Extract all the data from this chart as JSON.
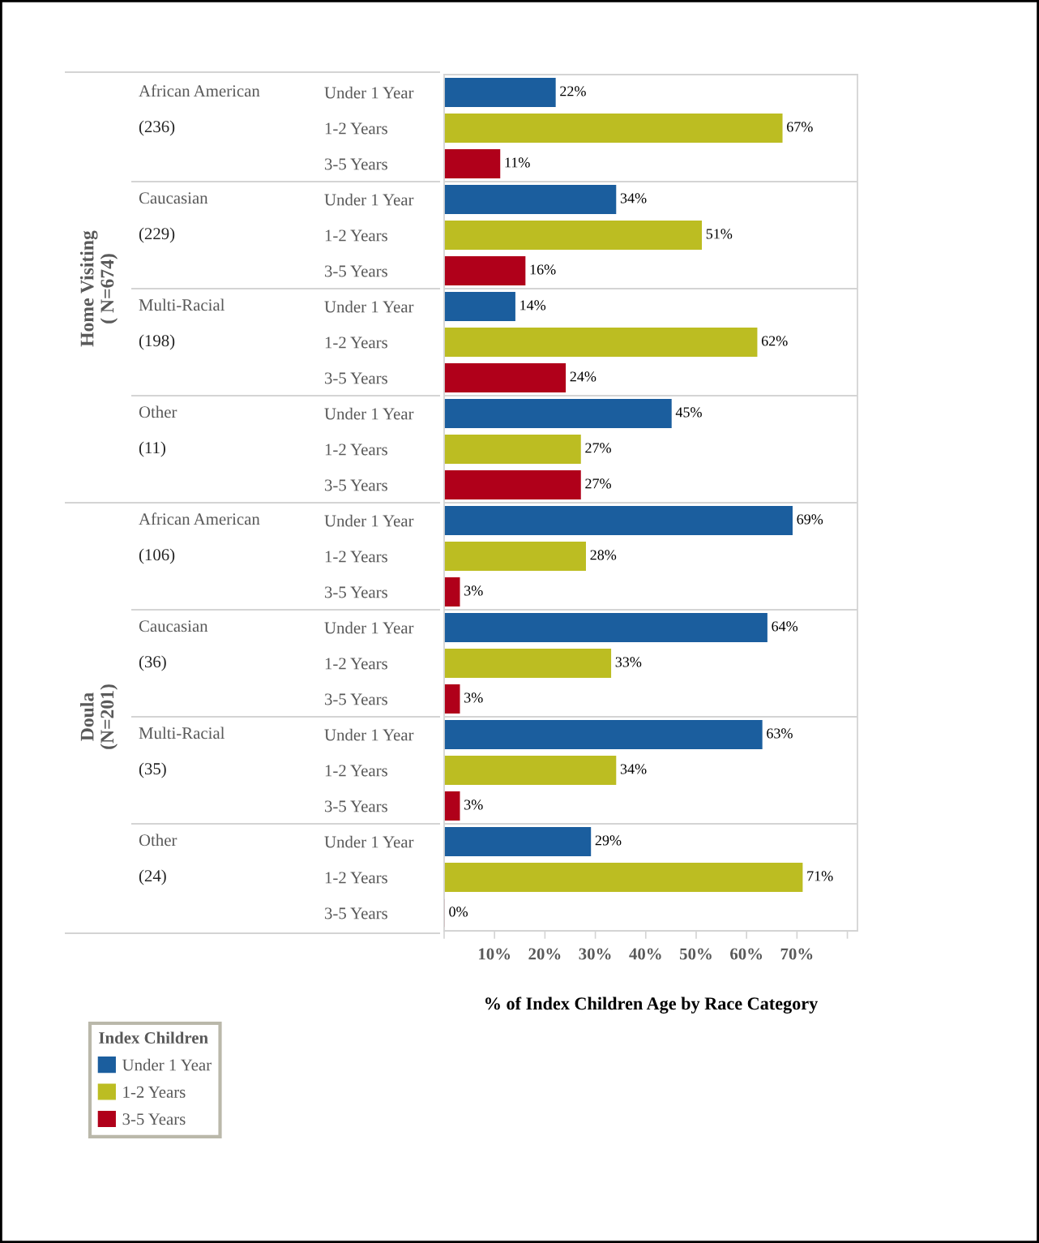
{
  "chart_data": {
    "type": "bar",
    "orientation": "horizontal",
    "xlabel": "% of Index Children Age by Race Category",
    "categories": [
      "Under 1 Year",
      "1-2 Years",
      "3-5 Years",
      "Under 1 Year",
      "1-2 Years",
      "3-5 Years",
      "Under 1 Year",
      "1-2 Years",
      "3-5 Years",
      "Under 1 Year",
      "1-2 Years",
      "3-5 Years",
      "Under 1 Year",
      "1-2 Years",
      "3-5 Years",
      "Under 1 Year",
      "1-2 Years",
      "3-5 Years",
      "Under 1 Year",
      "1-2 Years",
      "3-5 Years",
      "Under 1 Year",
      "1-2 Years",
      "3-5 Years"
    ],
    "series": [
      {
        "name": "Under 1 Year",
        "color": "#1b5e9e",
        "values": [
          22,
          null,
          null,
          34,
          null,
          null,
          14,
          null,
          null,
          45,
          null,
          null,
          69,
          null,
          null,
          64,
          null,
          null,
          63,
          null,
          null,
          29,
          null,
          null
        ],
        "value_labels": [
          "22%",
          null,
          null,
          "34%",
          null,
          null,
          "14%",
          null,
          null,
          "45%",
          null,
          null,
          "69%",
          null,
          null,
          "64%",
          null,
          null,
          "63%",
          null,
          null,
          "29%",
          null,
          null
        ]
      },
      {
        "name": "1-2 Years",
        "color": "#bcbd22",
        "values": [
          null,
          67,
          null,
          null,
          51,
          null,
          null,
          62,
          null,
          null,
          27,
          null,
          null,
          28,
          null,
          null,
          33,
          null,
          null,
          34,
          null,
          null,
          71,
          null
        ],
        "value_labels": [
          null,
          "67%",
          null,
          null,
          "51%",
          null,
          null,
          "62%",
          null,
          null,
          "27%",
          null,
          null,
          "28%",
          null,
          null,
          "33%",
          null,
          null,
          "34%",
          null,
          null,
          "71%",
          null
        ]
      },
      {
        "name": "3-5 Years",
        "color": "#b0001a",
        "values": [
          null,
          null,
          11,
          null,
          null,
          16,
          null,
          null,
          24,
          null,
          null,
          27,
          null,
          null,
          3,
          null,
          null,
          3,
          null,
          null,
          3,
          null,
          null,
          0
        ],
        "value_labels": [
          null,
          null,
          "11%",
          null,
          null,
          "16%",
          null,
          null,
          "24%",
          null,
          null,
          "27%",
          null,
          null,
          "3%",
          null,
          null,
          "3%",
          null,
          null,
          "3%",
          null,
          null,
          "0%"
        ]
      }
    ],
    "xlim": [
      0,
      82
    ],
    "xticks": [
      {
        "value": 0,
        "label": null
      },
      {
        "value": 10,
        "label": "10%"
      },
      {
        "value": 20,
        "label": "20%"
      },
      {
        "value": 30,
        "label": "30%"
      },
      {
        "value": 40,
        "label": "40%"
      },
      {
        "value": 50,
        "label": "50%"
      },
      {
        "value": 60,
        "label": "60%"
      },
      {
        "value": 70,
        "label": "70%"
      },
      {
        "value": 80,
        "label": null
      }
    ],
    "legend": "bottom left",
    "legend_title": "Index Children",
    "annotations": [
      "Home Visiting\n( N=674)",
      "Doula\n(N=201)",
      "African American\n(236)",
      "Caucasian\n(229)",
      "Multi-Racial\n(198)",
      "Other\n(11)",
      "African American\n(106)",
      "Caucasian\n(36)",
      "Multi-Racial\n(35)",
      "Other\n(24)"
    ]
  }
}
